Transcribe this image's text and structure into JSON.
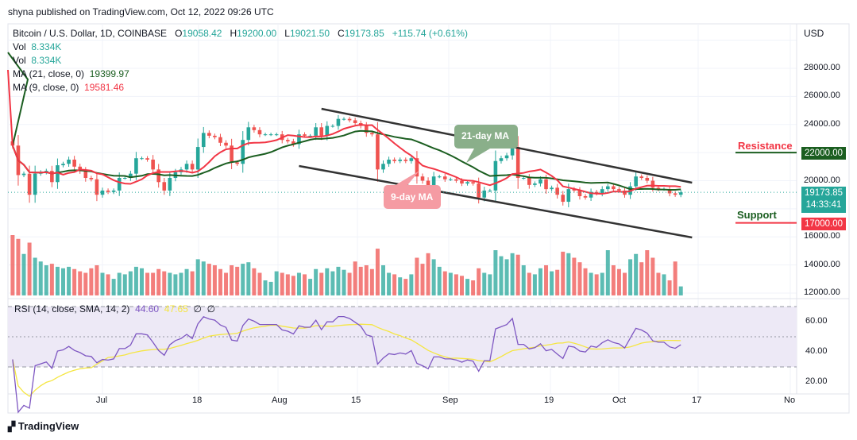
{
  "header": {
    "publisher": "shyna published on TradingView.com, Oct 12, 2022 09:26 UTC"
  },
  "legend": {
    "symbol": "Bitcoin / U.S. Dollar, 1D, COINBASE",
    "o_label": "O",
    "o": "19058.42",
    "h_label": "H",
    "h": "19200.00",
    "l_label": "L",
    "l": "19021.50",
    "c_label": "C",
    "c": "19173.85",
    "change": "+115.74 (+0.61%)",
    "vol1_label": "Vol",
    "vol1": "8.334K",
    "vol2_label": "Vol",
    "vol2": "8.334K",
    "ma21_label": "MA (21, close, 0)",
    "ma21": "19399.97",
    "ma9_label": "MA (9, close, 0)",
    "ma9": "19581.46",
    "rsi_label": "RSI (14, close, SMA, 14, 2)",
    "rsi": "44.60",
    "rsi_sma": "47.65",
    "rsi_extra1": "∅",
    "rsi_extra2": "∅"
  },
  "annotations": {
    "ma21_callout": "21-day MA",
    "ma9_callout": "9-day MA",
    "resistance": "Resistance",
    "support": "Support"
  },
  "price_axis": {
    "currency": "USD",
    "ticks": [
      "28000.00",
      "26000.00",
      "24000.00",
      "20000.00",
      "16000.00",
      "14000.00",
      "12000.00"
    ],
    "resistance_tag": "22000.00",
    "last_price": "19173.85",
    "countdown": "14:33:41",
    "support_tag": "17000.00"
  },
  "rsi_axis": {
    "ticks": [
      "60.00",
      "40.00",
      "20.00"
    ]
  },
  "time_axis": {
    "ticks": [
      "Jul",
      "18",
      "Aug",
      "15",
      "Sep",
      "19",
      "Oct",
      "17",
      "No"
    ]
  },
  "footer": {
    "logo": "TradingView"
  },
  "colors": {
    "up": "#26a69a",
    "down": "#ef5350",
    "ma21": "#1b5e20",
    "ma9": "#f23645",
    "rsi": "#7e57c2",
    "rsi_sma": "#f5e642",
    "resistance": "#1b5e20",
    "support": "#f23645"
  },
  "chart_data": {
    "type": "candlestick",
    "start_date": "2022-06-15",
    "closes": [
      22500,
      20400,
      20500,
      19000,
      20500,
      20600,
      20700,
      19900,
      21100,
      21200,
      21500,
      21000,
      20700,
      20200,
      20100,
      19000,
      19300,
      19200,
      19300,
      20200,
      20200,
      20500,
      21600,
      21600,
      21500,
      20800,
      19900,
      19300,
      20200,
      20600,
      20800,
      21200,
      20800,
      22400,
      23400,
      23200,
      23100,
      22700,
      22500,
      21300,
      21200,
      22900,
      23800,
      23600,
      23300,
      23300,
      23300,
      23300,
      22900,
      22800,
      22600,
      23300,
      23200,
      23200,
      23800,
      23200,
      23900,
      23900,
      24400,
      24400,
      24300,
      24100,
      23900,
      23400,
      23300,
      20800,
      21200,
      21500,
      21400,
      21500,
      21400,
      21600,
      20300,
      20000,
      19600,
      20300,
      20300,
      20100,
      20100,
      20000,
      19800,
      19900,
      19800,
      18800,
      19300,
      19300,
      21400,
      21600,
      21800,
      22400,
      20200,
      20200,
      19700,
      19800,
      20100,
      19400,
      19500,
      19000,
      18500,
      19400,
      19300,
      18900,
      18800,
      19200,
      19100,
      19400,
      19600,
      19400,
      19300,
      19000,
      19600,
      20300,
      20200,
      20000,
      19500,
      19400,
      19400,
      19100,
      19000,
      19173.85
    ],
    "volumes": [
      80,
      75,
      55,
      70,
      50,
      45,
      40,
      42,
      38,
      36,
      38,
      35,
      32,
      30,
      36,
      40,
      30,
      28,
      22,
      30,
      28,
      32,
      38,
      36,
      30,
      30,
      35,
      32,
      30,
      28,
      30,
      35,
      32,
      48,
      45,
      42,
      40,
      35,
      30,
      40,
      38,
      42,
      44,
      36,
      30,
      20,
      18,
      32,
      30,
      28,
      26,
      30,
      28,
      22,
      35,
      30,
      36,
      32,
      38,
      34,
      30,
      45,
      38,
      40,
      35,
      62,
      40,
      30,
      28,
      24,
      22,
      28,
      50,
      42,
      56,
      48,
      38,
      32,
      30,
      28,
      26,
      22,
      20,
      36,
      30,
      28,
      60,
      52,
      48,
      56,
      54,
      40,
      30,
      28,
      36,
      40,
      32,
      34,
      58,
      56,
      50,
      44,
      36,
      30,
      28,
      30,
      60,
      40,
      35,
      30,
      48,
      55,
      44,
      60,
      50,
      30,
      28,
      20,
      45,
      12
    ],
    "ma_periods": [
      21,
      9
    ],
    "rsi_period": 14,
    "trendlines": [
      {
        "from": [
          "2022-08-09",
          25117
        ],
        "to": [
          "2022-10-14",
          19860
        ]
      },
      {
        "from": [
          "2022-08-05",
          21047
        ],
        "to": [
          "2022-10-14",
          15959
        ]
      }
    ],
    "levels": {
      "resistance": 22000,
      "support": 17000
    },
    "ylim": [
      12000,
      30000
    ],
    "rsi_ylim": [
      20,
      70
    ]
  }
}
